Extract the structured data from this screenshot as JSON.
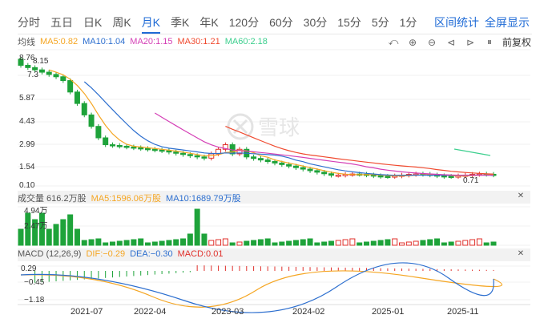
{
  "period_tabs": [
    "分时",
    "五日",
    "日K",
    "周K",
    "月K",
    "季K",
    "年K",
    "120分",
    "60分",
    "30分",
    "15分",
    "5分",
    "1分"
  ],
  "active_tab": "月K",
  "tab_links": {
    "range_stats": "区间统计",
    "fullscreen": "全屏显示"
  },
  "price_legend": {
    "title": "均线",
    "items": [
      {
        "label": "MA5:0.82",
        "color": "#f5a623"
      },
      {
        "label": "MA10:1.04",
        "color": "#2d6fcf"
      },
      {
        "label": "MA20:1.15",
        "color": "#d43fb6"
      },
      {
        "label": "MA30:1.21",
        "color": "#f04a2f"
      },
      {
        "label": "MA60:2.18",
        "color": "#3ccf8e"
      }
    ]
  },
  "toolbar": {
    "adjust_label": "前复权",
    "icons": [
      "undo-icon",
      "zoom-in-icon",
      "zoom-out-icon",
      "scroll-left-icon",
      "scroll-right-icon",
      "pause-icon"
    ]
  },
  "price_axis": [
    "8.76",
    "8.15",
    "7.3",
    "5.87",
    "4.43",
    "2.99",
    "1.54",
    "0.10",
    "0.71"
  ],
  "watermark": "雪球",
  "volume_legend": {
    "title": "成交量 616.2万股",
    "items": [
      {
        "label": "MA5:1596.06万股",
        "color": "#f5a623"
      },
      {
        "label": "MA10:1689.79万股",
        "color": "#2d6fcf"
      }
    ]
  },
  "volume_axis": [
    "4.94万",
    "2.47万"
  ],
  "macd_legend": {
    "title": "MACD (12,26,9)",
    "items": [
      {
        "label": "DIF:−0.29",
        "color": "#f5a623"
      },
      {
        "label": "DEA:−0.30",
        "color": "#2d6fcf"
      },
      {
        "label": "MACD:0.01",
        "color": "#e0302b"
      }
    ]
  },
  "macd_axis": [
    "0.29",
    "−0.45",
    "−1.18"
  ],
  "date_axis": [
    "2021-07",
    "2022-04",
    "2023-03",
    "2024-02",
    "2025-01",
    "2025-11"
  ],
  "colors": {
    "up": "#e0302b",
    "down": "#1ea33a",
    "accent": "#1f6bd6"
  },
  "chart_data": {
    "type": "candlestick",
    "period": "monthly",
    "y_range": [
      0.1,
      8.76
    ],
    "high_label": "8.15",
    "low_label": "0.71",
    "start_price": 8.0,
    "end_price": 0.82
  }
}
